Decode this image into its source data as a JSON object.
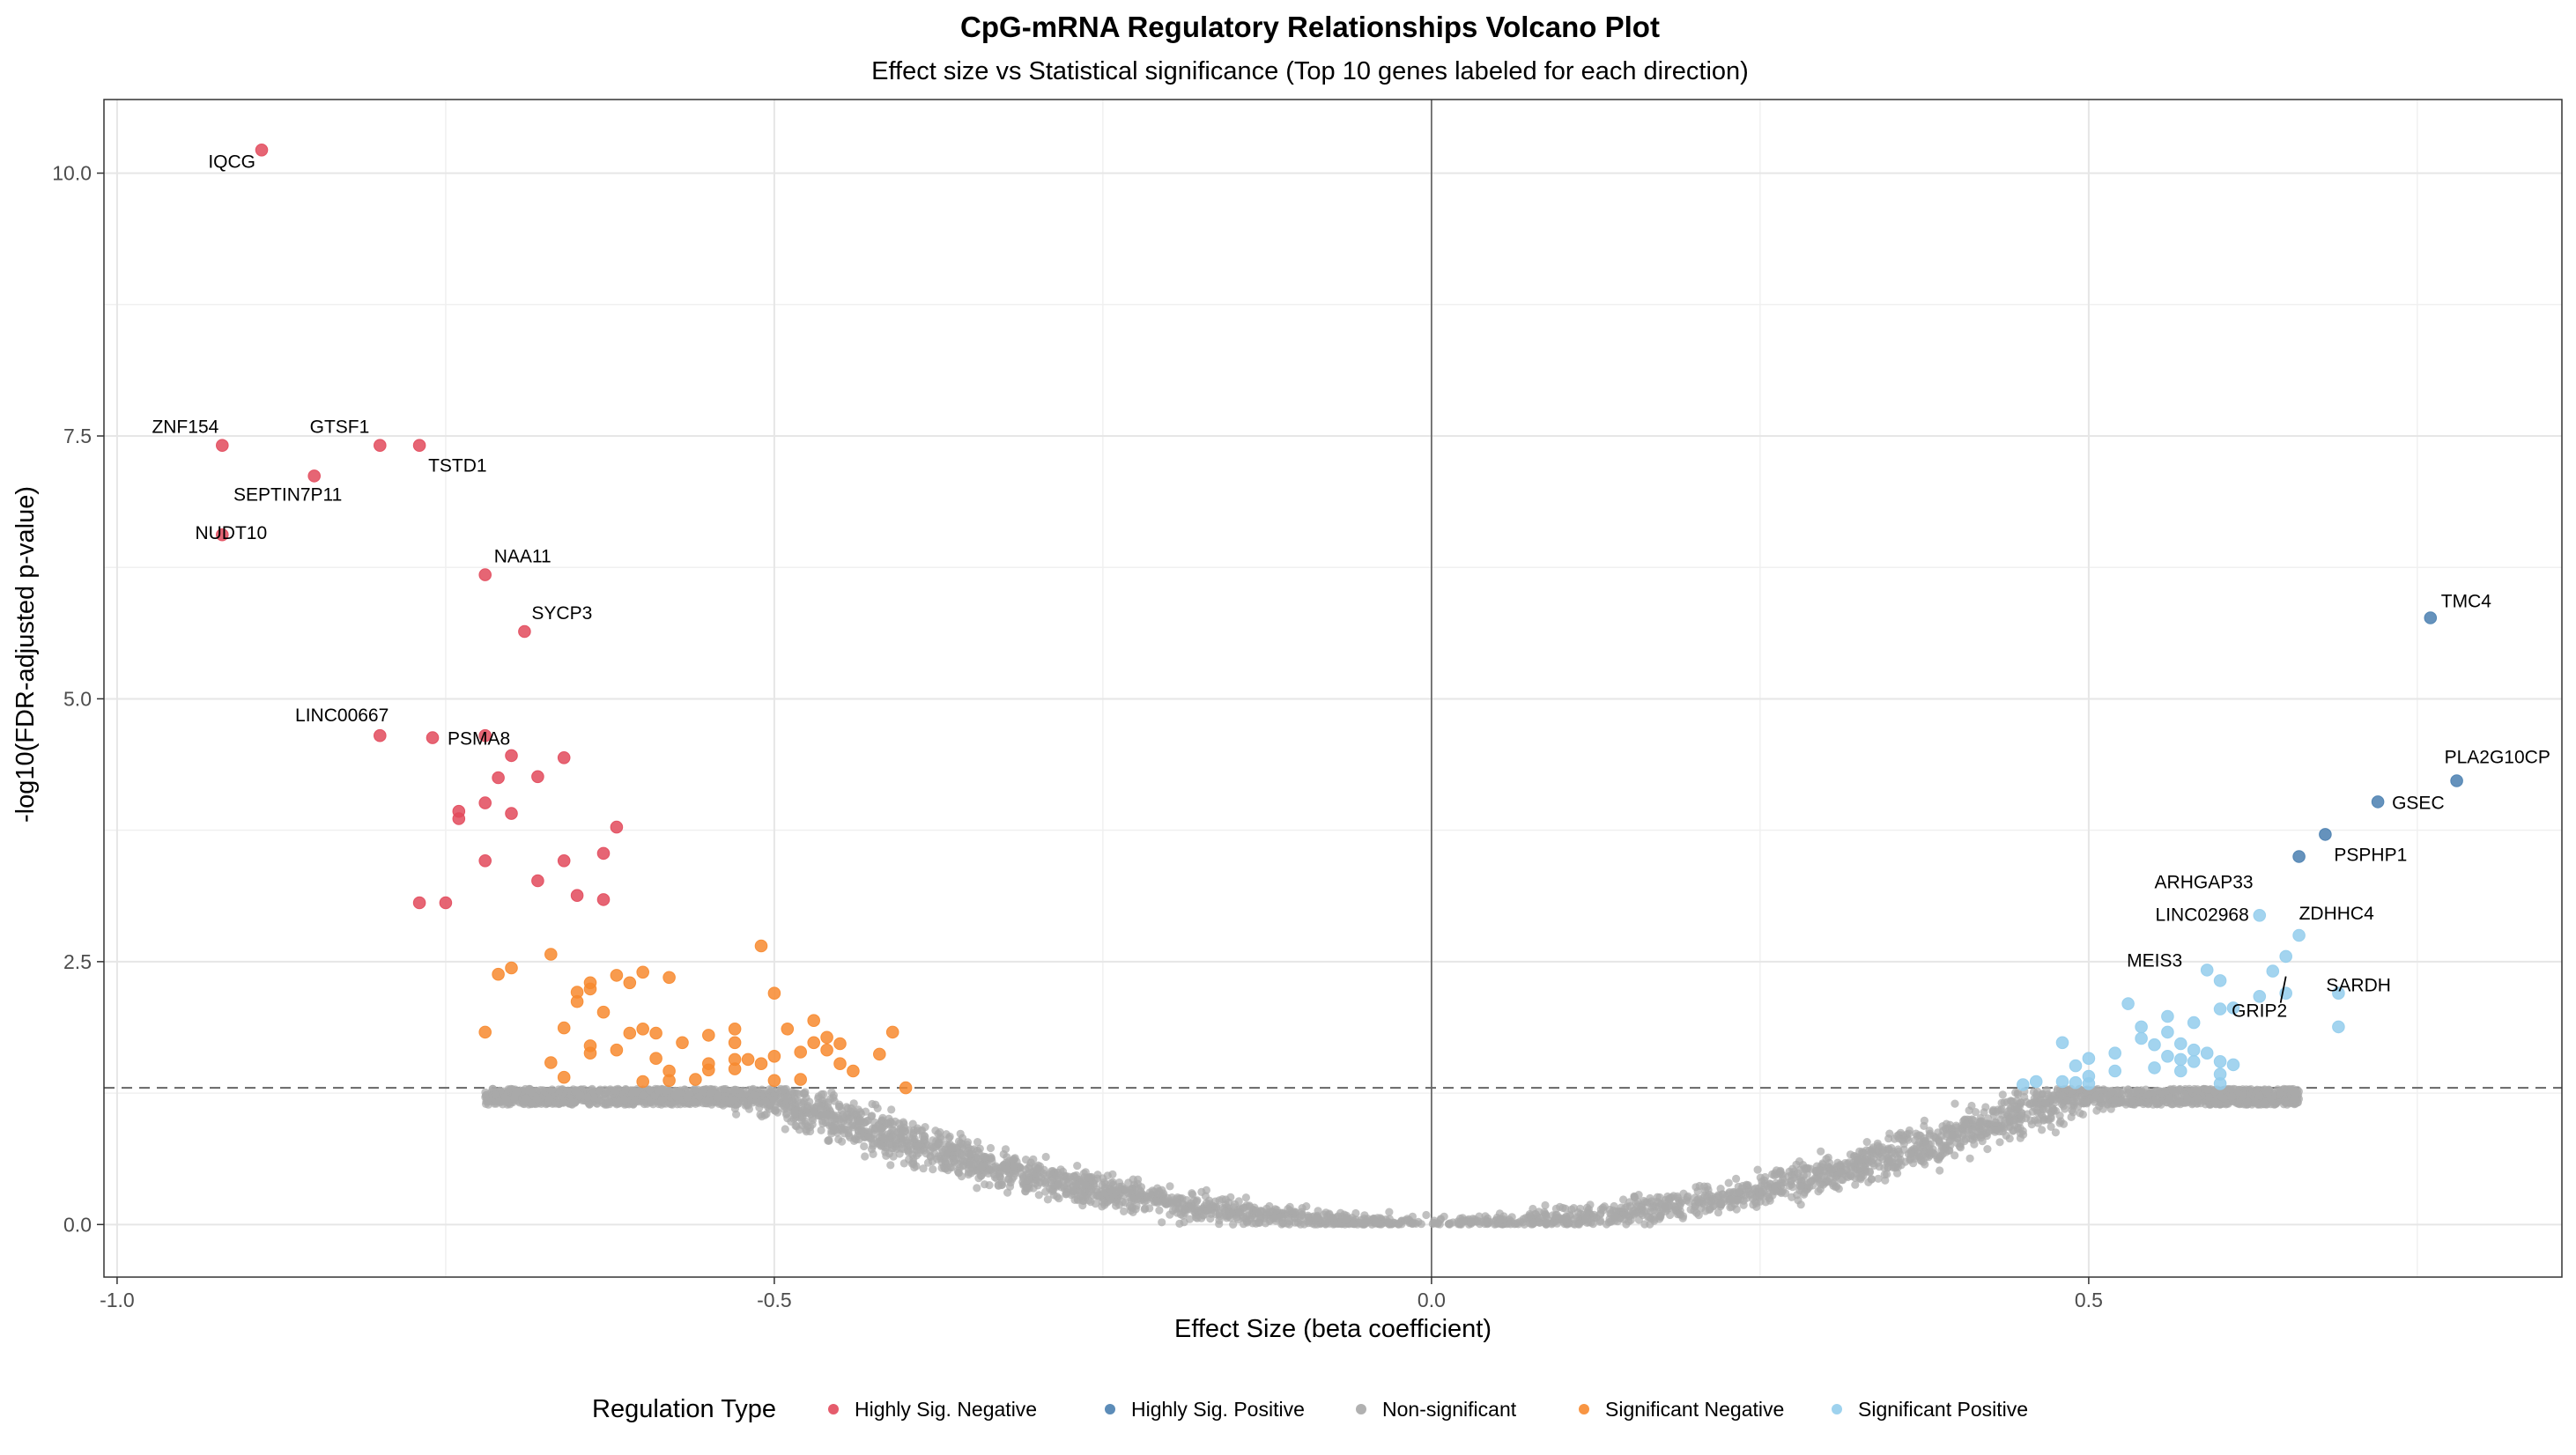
{
  "chart_data": {
    "type": "scatter",
    "title": "CpG-mRNA Regulatory Relationships Volcano Plot",
    "subtitle": "Effect size vs Statistical significance (Top 10 genes labeled for each direction)",
    "xlabel": "Effect Size (beta coefficient)",
    "ylabel": "-log10(FDR-adjusted p-value)",
    "xlim": [
      -1.01,
      0.86
    ],
    "ylim": [
      -0.5,
      10.7
    ],
    "x_ticks": [
      -1.0,
      -0.5,
      0.0,
      0.5
    ],
    "x_tick_labels": [
      "-1.0",
      "-0.5",
      "0.0",
      "0.5"
    ],
    "y_ticks": [
      0.0,
      2.5,
      5.0,
      7.5,
      10.0
    ],
    "y_tick_labels": [
      "0.0",
      "2.5",
      "5.0",
      "7.5",
      "10.0"
    ],
    "grid": true,
    "significance_threshold": 1.3,
    "vertical_reference": 0.0,
    "legend_title": "Regulation Type",
    "legend_position": "bottom",
    "colors": {
      "Highly Sig. Negative": "#e24a5c",
      "Highly Sig. Positive": "#4a7fb0",
      "Non-significant": "#a9a9a9",
      "Significant Negative": "#f7892f",
      "Significant Positive": "#93cdec"
    },
    "series": [
      {
        "name": "Highly Sig. Negative",
        "points": [
          [
            -0.89,
            10.22
          ],
          [
            -0.92,
            7.41
          ],
          [
            -0.8,
            7.41
          ],
          [
            -0.77,
            7.41
          ],
          [
            -0.85,
            7.12
          ],
          [
            -0.92,
            6.56
          ],
          [
            -0.72,
            6.18
          ],
          [
            -0.69,
            5.64
          ],
          [
            -0.8,
            4.65
          ],
          [
            -0.76,
            4.63
          ],
          [
            -0.72,
            4.65
          ],
          [
            -0.7,
            4.46
          ],
          [
            -0.66,
            4.44
          ],
          [
            -0.71,
            4.25
          ],
          [
            -0.68,
            4.26
          ],
          [
            -0.72,
            4.01
          ],
          [
            -0.74,
            3.93
          ],
          [
            -0.7,
            3.91
          ],
          [
            -0.74,
            3.86
          ],
          [
            -0.62,
            3.78
          ],
          [
            -0.63,
            3.53
          ],
          [
            -0.72,
            3.46
          ],
          [
            -0.66,
            3.46
          ],
          [
            -0.68,
            3.27
          ],
          [
            -0.65,
            3.13
          ],
          [
            -0.77,
            3.06
          ],
          [
            -0.75,
            3.06
          ],
          [
            -0.63,
            3.09
          ]
        ]
      },
      {
        "name": "Highly Sig. Positive",
        "points": [
          [
            0.76,
            5.77
          ],
          [
            0.78,
            4.22
          ],
          [
            0.72,
            4.02
          ],
          [
            0.68,
            3.71
          ],
          [
            0.66,
            3.5
          ]
        ]
      },
      {
        "name": "Significant Negative",
        "points": [
          [
            -0.51,
            2.65
          ],
          [
            -0.67,
            2.57
          ],
          [
            -0.7,
            2.44
          ],
          [
            -0.71,
            2.38
          ],
          [
            -0.62,
            2.37
          ],
          [
            -0.6,
            2.4
          ],
          [
            -0.58,
            2.35
          ],
          [
            -0.64,
            2.3
          ],
          [
            -0.61,
            2.3
          ],
          [
            -0.64,
            2.24
          ],
          [
            -0.65,
            2.21
          ],
          [
            -0.5,
            2.2
          ],
          [
            -0.65,
            2.12
          ],
          [
            -0.63,
            2.02
          ],
          [
            -0.47,
            1.94
          ],
          [
            -0.66,
            1.87
          ],
          [
            -0.6,
            1.86
          ],
          [
            -0.53,
            1.86
          ],
          [
            -0.49,
            1.86
          ],
          [
            -0.72,
            1.83
          ],
          [
            -0.61,
            1.82
          ],
          [
            -0.59,
            1.82
          ],
          [
            -0.41,
            1.83
          ],
          [
            -0.55,
            1.8
          ],
          [
            -0.46,
            1.78
          ],
          [
            -0.57,
            1.73
          ],
          [
            -0.53,
            1.73
          ],
          [
            -0.47,
            1.73
          ],
          [
            -0.45,
            1.72
          ],
          [
            -0.64,
            1.7
          ],
          [
            -0.62,
            1.66
          ],
          [
            -0.46,
            1.66
          ],
          [
            -0.64,
            1.63
          ],
          [
            -0.48,
            1.64
          ],
          [
            -0.42,
            1.62
          ],
          [
            -0.5,
            1.6
          ],
          [
            -0.59,
            1.58
          ],
          [
            -0.53,
            1.57
          ],
          [
            -0.52,
            1.57
          ],
          [
            -0.67,
            1.54
          ],
          [
            -0.55,
            1.53
          ],
          [
            -0.51,
            1.53
          ],
          [
            -0.45,
            1.53
          ],
          [
            -0.58,
            1.46
          ],
          [
            -0.55,
            1.47
          ],
          [
            -0.53,
            1.48
          ],
          [
            -0.44,
            1.46
          ],
          [
            -0.66,
            1.4
          ],
          [
            -0.6,
            1.36
          ],
          [
            -0.58,
            1.37
          ],
          [
            -0.56,
            1.38
          ],
          [
            -0.5,
            1.37
          ],
          [
            -0.48,
            1.38
          ],
          [
            -0.4,
            1.3
          ]
        ]
      },
      {
        "name": "Significant Positive",
        "points": [
          [
            0.65,
            2.55
          ],
          [
            0.64,
            2.41
          ],
          [
            0.59,
            2.42
          ],
          [
            0.6,
            2.32
          ],
          [
            0.65,
            2.2
          ],
          [
            0.69,
            2.2
          ],
          [
            0.63,
            2.17
          ],
          [
            0.53,
            2.1
          ],
          [
            0.61,
            2.06
          ],
          [
            0.6,
            2.05
          ],
          [
            0.56,
            1.98
          ],
          [
            0.58,
            1.92
          ],
          [
            0.54,
            1.88
          ],
          [
            0.69,
            1.88
          ],
          [
            0.56,
            1.83
          ],
          [
            0.54,
            1.77
          ],
          [
            0.48,
            1.73
          ],
          [
            0.55,
            1.71
          ],
          [
            0.57,
            1.72
          ],
          [
            0.58,
            1.66
          ],
          [
            0.52,
            1.63
          ],
          [
            0.59,
            1.63
          ],
          [
            0.56,
            1.6
          ],
          [
            0.57,
            1.57
          ],
          [
            0.5,
            1.58
          ],
          [
            0.6,
            1.55
          ],
          [
            0.61,
            1.52
          ],
          [
            0.58,
            1.55
          ],
          [
            0.49,
            1.51
          ],
          [
            0.55,
            1.49
          ],
          [
            0.57,
            1.46
          ],
          [
            0.52,
            1.46
          ],
          [
            0.6,
            1.43
          ],
          [
            0.5,
            1.41
          ],
          [
            0.48,
            1.36
          ],
          [
            0.46,
            1.36
          ],
          [
            0.49,
            1.35
          ],
          [
            0.5,
            1.34
          ],
          [
            0.45,
            1.33
          ],
          [
            0.6,
            1.34
          ],
          [
            0.66,
            2.75
          ],
          [
            0.63,
            2.94
          ]
        ]
      }
    ],
    "labels": [
      {
        "gene": "IQCG",
        "x": -0.89,
        "y": 10.22
      },
      {
        "gene": "ZNF154",
        "x": -0.92,
        "y": 7.41
      },
      {
        "gene": "GTSF1",
        "x": -0.8,
        "y": 7.41
      },
      {
        "gene": "TSTD1",
        "x": -0.77,
        "y": 7.41
      },
      {
        "gene": "SEPTIN7P11",
        "x": -0.85,
        "y": 7.12
      },
      {
        "gene": "NUDT10",
        "x": -0.92,
        "y": 6.56
      },
      {
        "gene": "NAA11",
        "x": -0.72,
        "y": 6.18
      },
      {
        "gene": "SYCP3",
        "x": -0.69,
        "y": 5.64
      },
      {
        "gene": "LINC00667",
        "x": -0.8,
        "y": 4.65
      },
      {
        "gene": "PSMA8",
        "x": -0.76,
        "y": 4.63
      },
      {
        "gene": "TMC4",
        "x": 0.76,
        "y": 5.77
      },
      {
        "gene": "PLA2G10CP",
        "x": 0.78,
        "y": 4.22
      },
      {
        "gene": "GSEC",
        "x": 0.72,
        "y": 4.02
      },
      {
        "gene": "PSPHP1",
        "x": 0.68,
        "y": 3.71
      },
      {
        "gene": "ARHGAP33",
        "x": 0.66,
        "y": 3.5
      },
      {
        "gene": "LINC02968",
        "x": 0.63,
        "y": 2.94
      },
      {
        "gene": "ZDHHC4",
        "x": 0.66,
        "y": 2.75
      },
      {
        "gene": "MEIS3",
        "x": 0.59,
        "y": 2.42
      },
      {
        "gene": "SARDH",
        "x": 0.69,
        "y": 2.2
      },
      {
        "gene": "GRIP2",
        "x": 0.65,
        "y": 2.41
      }
    ]
  }
}
